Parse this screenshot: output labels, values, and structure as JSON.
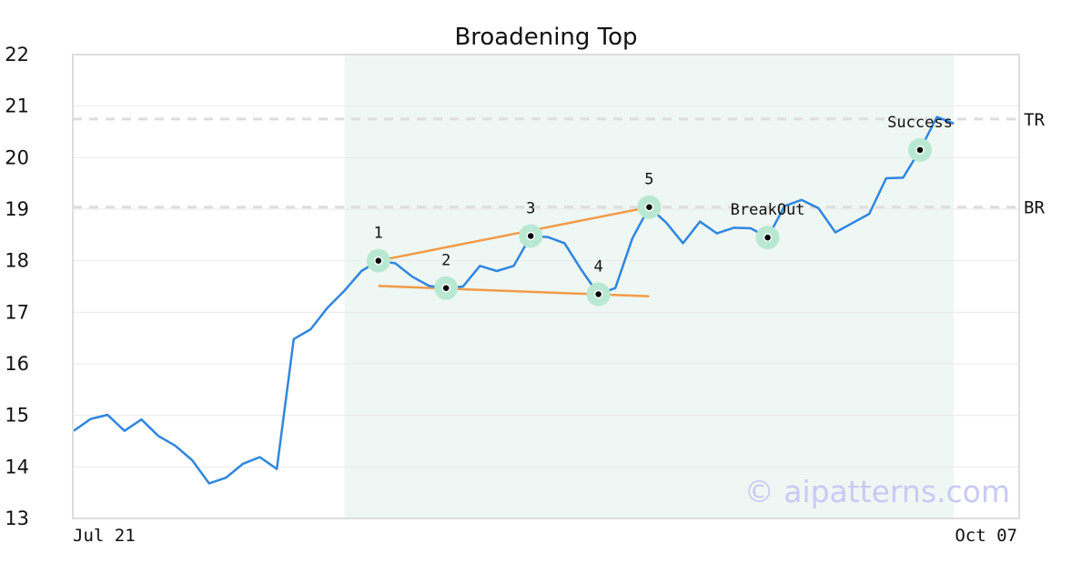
{
  "chart_data": {
    "type": "line",
    "title": "Broadening Top",
    "xlabel": "",
    "ylabel": "",
    "ylim": [
      13,
      22
    ],
    "yticks": [
      13,
      14,
      15,
      16,
      17,
      18,
      19,
      20,
      21,
      22
    ],
    "xtick_labels": [
      "Jul 21",
      "Oct 07"
    ],
    "grid": true,
    "colors": {
      "line": "#2f86e0",
      "trend": "#f29b48",
      "highlight": "#b9e8d2",
      "shade": "#eef7f3",
      "refline": "#dddddd",
      "watermark": "#c9c9f5"
    },
    "series": [
      {
        "values": [
          14.7,
          14.93,
          15.01,
          14.7,
          14.92,
          14.6,
          14.41,
          14.13,
          13.68,
          13.79,
          14.06,
          14.19,
          13.96,
          16.48,
          16.67,
          17.09,
          17.42,
          17.8,
          18.0,
          17.95,
          17.69,
          17.51,
          17.47,
          17.5,
          17.9,
          17.8,
          17.9,
          18.48,
          18.46,
          18.34,
          17.82,
          17.35,
          17.47,
          18.43,
          19.04,
          18.74,
          18.34,
          18.76,
          18.53,
          18.64,
          18.63,
          18.45,
          19.06,
          19.18,
          19.02,
          18.55,
          18.73,
          18.91,
          19.6,
          19.61,
          20.15,
          20.79,
          20.66
        ]
      }
    ],
    "shaded_range": [
      16,
      52
    ],
    "trendlines": [
      {
        "from": [
          18,
          18.0
        ],
        "to": [
          34,
          19.04
        ]
      },
      {
        "from": [
          18,
          17.51
        ],
        "to": [
          34,
          17.31
        ]
      }
    ],
    "reference_lines": [
      {
        "name": "TR",
        "y": 20.75
      },
      {
        "name": "BR",
        "y": 19.04
      }
    ],
    "annotations": [
      {
        "label": "1",
        "index": 18,
        "y": 18.0,
        "position": "above"
      },
      {
        "label": "2",
        "index": 22,
        "y": 17.47,
        "position": "above"
      },
      {
        "label": "3",
        "index": 27,
        "y": 18.48,
        "position": "above"
      },
      {
        "label": "4",
        "index": 31,
        "y": 17.35,
        "position": "above"
      },
      {
        "label": "5",
        "index": 34,
        "y": 19.04,
        "position": "above"
      },
      {
        "label": "BreakOut",
        "index": 41,
        "y": 18.45,
        "position": "above"
      },
      {
        "label": "Success",
        "index": 50,
        "y": 20.15,
        "position": "above"
      }
    ]
  },
  "watermark": "© aipatterns.com"
}
